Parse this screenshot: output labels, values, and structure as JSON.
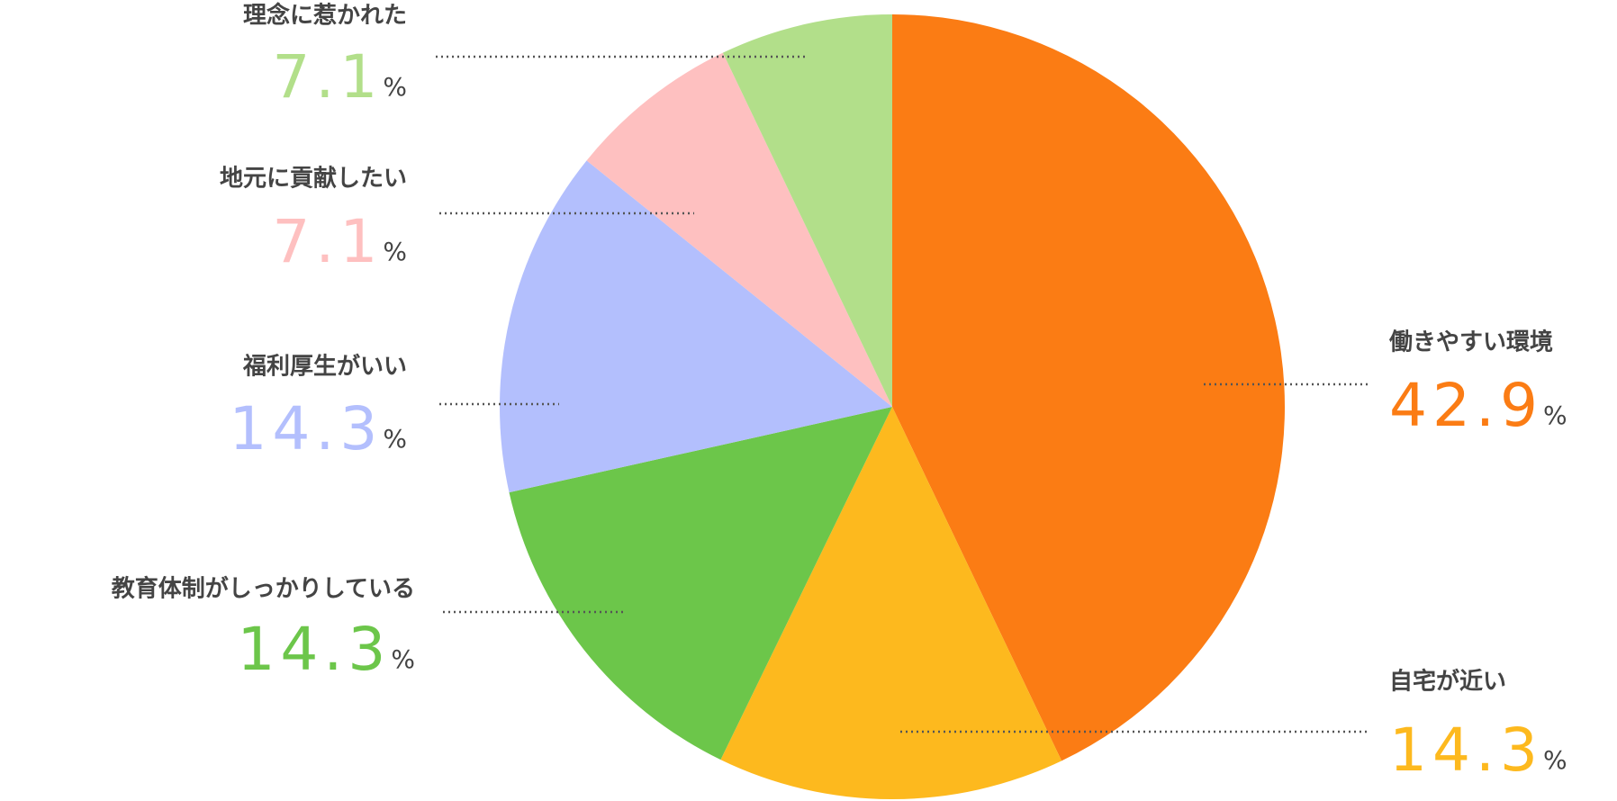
{
  "chart_data": {
    "type": "pie",
    "categories": [
      "働きやすい環境",
      "自宅が近い",
      "教育体制がしっかりしている",
      "福利厚生がいい",
      "地元に貢献したい",
      "理念に惹かれた"
    ],
    "values": [
      42.9,
      14.3,
      14.3,
      14.3,
      7.1,
      7.1
    ],
    "colors": [
      "#fb7c14",
      "#fdb91e",
      "#6cc64a",
      "#b3bffd",
      "#fec0c0",
      "#b2df8a"
    ],
    "unit": "%"
  }
}
